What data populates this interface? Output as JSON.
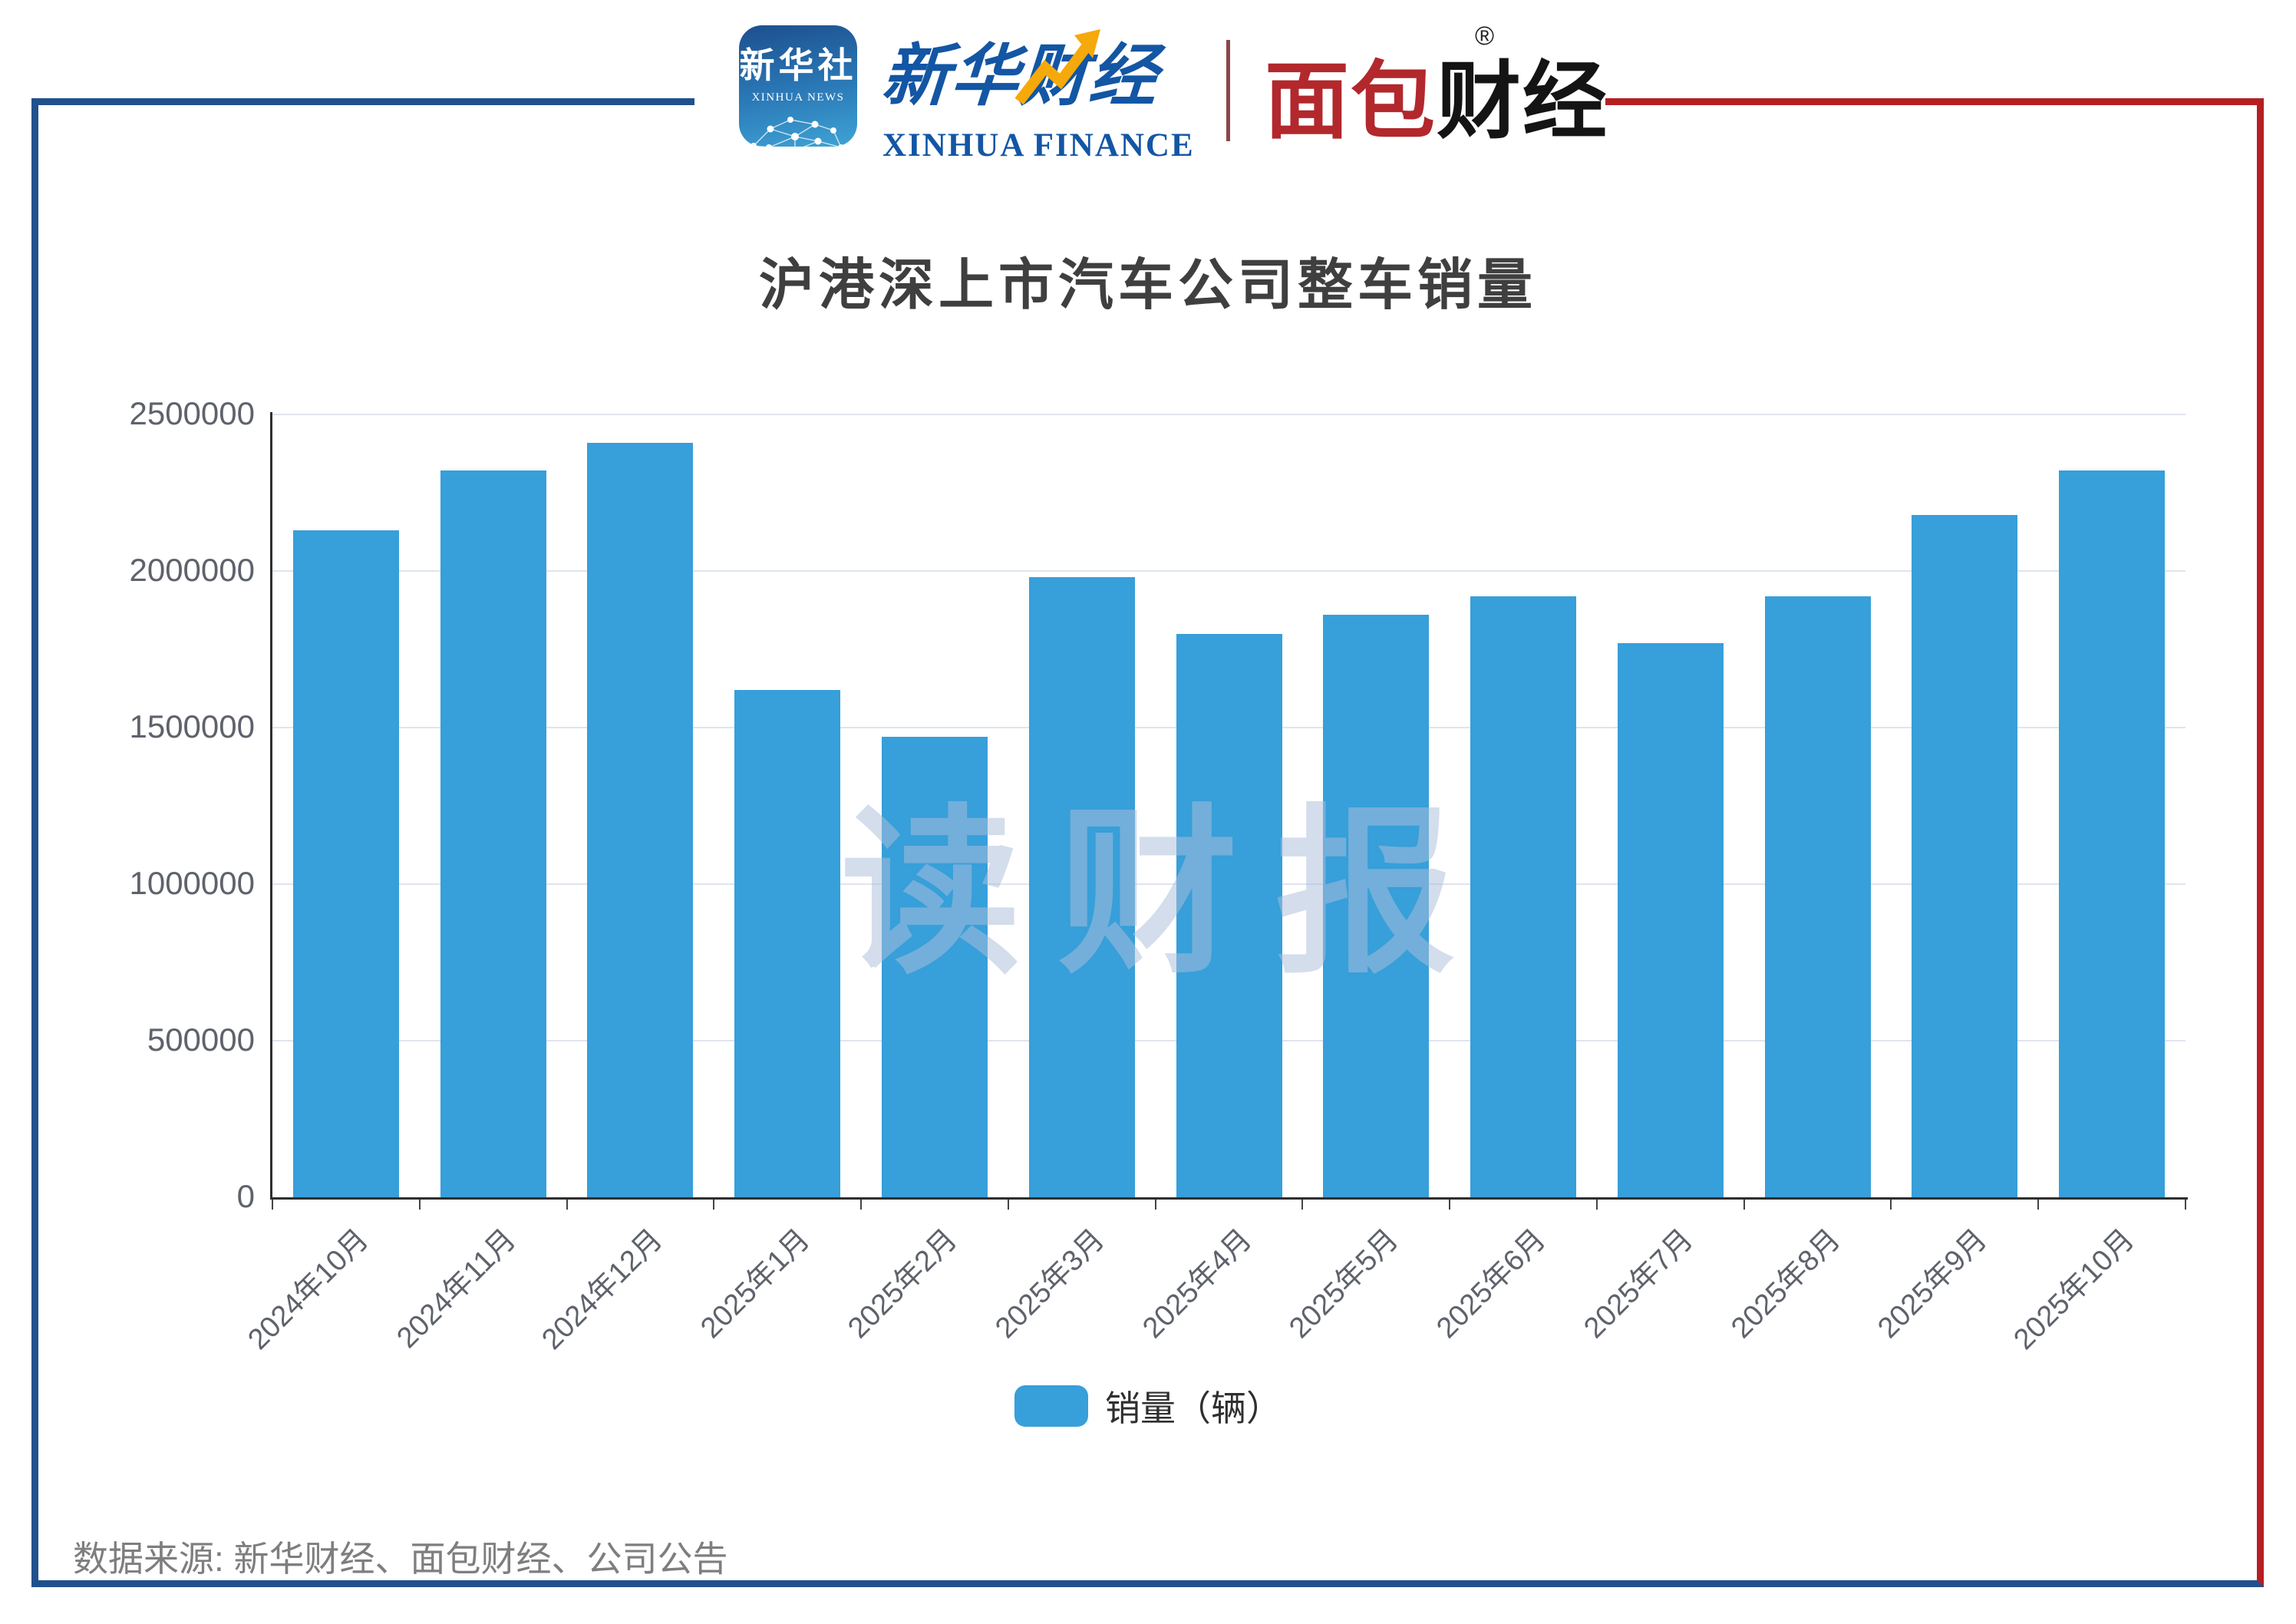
{
  "header": {
    "xinhua_icon": {
      "line1": "新华社",
      "line2": "XINHUA NEWS"
    },
    "xinhua_finance": {
      "cn": "新华财经",
      "en": "XINHUA FINANCE"
    },
    "mianbao": {
      "cn_red": "面包",
      "cn_black": "财经",
      "reg": "®"
    }
  },
  "chart_data": {
    "type": "bar",
    "title": "沪港深上市汽车公司整车销量",
    "categories": [
      "2024年10月",
      "2024年11月",
      "2024年12月",
      "2025年1月",
      "2025年2月",
      "2025年3月",
      "2025年4月",
      "2025年5月",
      "2025年6月",
      "2025年7月",
      "2025年8月",
      "2025年9月",
      "2025年10月"
    ],
    "series": [
      {
        "name": "销量（辆）",
        "values": [
          2130000,
          2320000,
          2410000,
          1620000,
          1470000,
          1980000,
          1800000,
          1860000,
          1920000,
          1770000,
          1920000,
          2180000,
          2320000
        ]
      }
    ],
    "xlabel": "",
    "ylabel": "",
    "ylim": [
      0,
      2500000
    ],
    "yticks": [
      0,
      500000,
      1000000,
      1500000,
      2000000,
      2500000
    ],
    "grid": true,
    "legend_position": "bottom",
    "bar_color": "#379FD9"
  },
  "watermark": "读财报",
  "footer": {
    "source": "数据来源: 新华财经、面包财经、公司公告"
  },
  "colors": {
    "frame_blue": "#21518D",
    "frame_red": "#B51F24",
    "bar_blue": "#379FD9",
    "logo_blue": "#1356A4",
    "logo_gold": "#F6A90A",
    "mianbao_red": "#B2282C",
    "axis_text": "#5E626B",
    "gridline": "#E0E4EF"
  }
}
